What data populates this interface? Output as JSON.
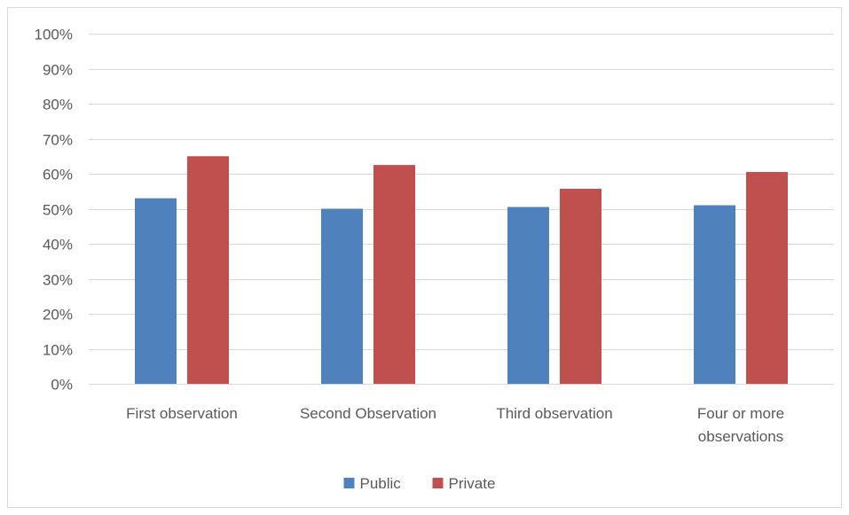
{
  "chart_data": {
    "type": "bar",
    "categories": [
      [
        "First observation"
      ],
      [
        "Second Observation"
      ],
      [
        "Third observation"
      ],
      [
        "Four or more",
        "observations"
      ]
    ],
    "series": [
      {
        "name": "Public",
        "values": [
          53,
          50,
          50.5,
          51
        ],
        "color": "#4f81bd"
      },
      {
        "name": "Private",
        "values": [
          65,
          62.5,
          55.7,
          60.5
        ],
        "color": "#c0504d"
      }
    ],
    "ylim": [
      0,
      100
    ],
    "ytick_step": 10,
    "ytick_suffix": "%",
    "grid": true,
    "gridline_color": "#d9d9d9",
    "legend_position": "bottom-center"
  }
}
